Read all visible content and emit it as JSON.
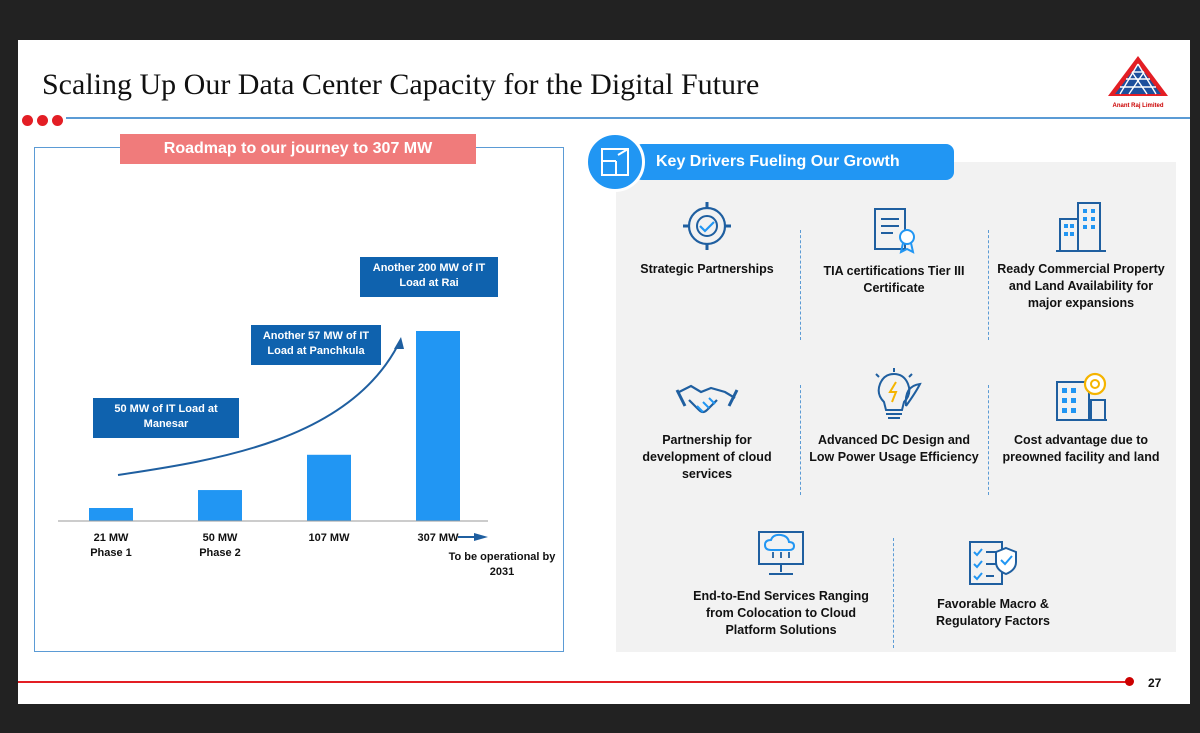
{
  "slide": {
    "title": "Scaling Up Our Data Center Capacity for the Digital Future",
    "logo_text": "Anant Raj Limited",
    "page_number": "27"
  },
  "roadmap": {
    "label": "Roadmap to our journey to 307 MW",
    "callouts": [
      "50 MW of IT Load at Manesar",
      "Another 57 MW of IT Load at Panchkula",
      "Another 200 MW of IT Load at Rai"
    ],
    "footnote": "To be operational by 2031"
  },
  "chart_data": {
    "type": "bar",
    "categories": [
      "21 MW Phase 1",
      "50 MW Phase 2",
      "107 MW",
      "307 MW"
    ],
    "values": [
      21,
      50,
      107,
      307
    ],
    "tick_main": [
      "21 MW",
      "50 MW",
      "107 MW",
      "307 MW"
    ],
    "tick_sub": [
      "Phase 1",
      "Phase 2",
      "",
      ""
    ],
    "title": "Roadmap to our journey to 307 MW",
    "xlabel": "",
    "ylabel": "",
    "ylim": [
      0,
      307
    ],
    "grid": false
  },
  "drivers": {
    "heading": "Key Drivers Fueling Our Growth",
    "items": [
      {
        "label": "Strategic Partnerships",
        "icon": "gear-handshake-icon"
      },
      {
        "label": "TIA certifications Tier III Certificate",
        "icon": "certificate-icon"
      },
      {
        "label": "Ready Commercial Property and Land Availability for major expansions",
        "icon": "buildings-icon"
      },
      {
        "label": "Partnership for development of cloud services",
        "icon": "handshake-icon"
      },
      {
        "label": "Advanced DC Design and Low Power Usage Efficiency",
        "icon": "bulb-leaf-icon"
      },
      {
        "label": "Cost advantage due to preowned facility and land",
        "icon": "building-gear-icon"
      },
      {
        "label": "End-to-End Services Ranging from Colocation to Cloud Platform Solutions",
        "icon": "cloud-monitor-icon"
      },
      {
        "label": "Favorable Macro & Regulatory Factors",
        "icon": "checklist-shield-icon"
      }
    ]
  },
  "colors": {
    "accent_blue": "#2196f3",
    "dark_blue": "#0f62ae",
    "red": "#e31e24",
    "salmon": "#f07b7b"
  }
}
